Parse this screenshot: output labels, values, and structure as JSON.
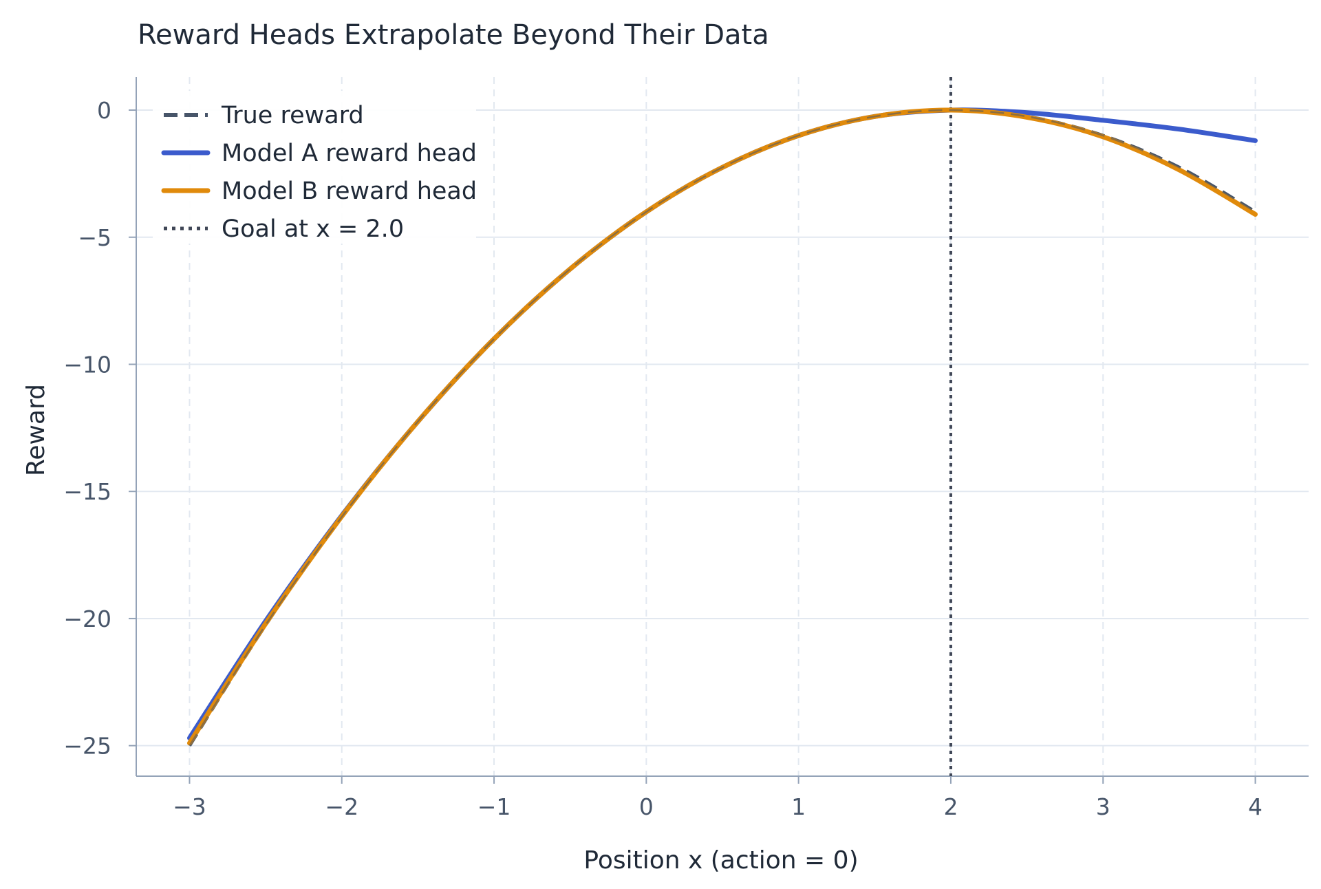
{
  "chart_data": {
    "type": "line",
    "title": "Reward Heads Extrapolate Beyond Their Data",
    "xlabel": "Position x (action = 0)",
    "ylabel": "Reward",
    "xlim": [
      -3.35,
      4.35
    ],
    "ylim": [
      -26.2,
      1.3
    ],
    "xticks": [
      -3,
      -2,
      -1,
      0,
      1,
      2,
      3,
      4
    ],
    "yticks": [
      0,
      -5,
      -10,
      -15,
      -20,
      -25
    ],
    "xtick_labels": [
      "−3",
      "−2",
      "−1",
      "0",
      "1",
      "2",
      "3",
      "4"
    ],
    "ytick_labels": [
      "0",
      "−5",
      "−10",
      "−15",
      "−20",
      "−25"
    ],
    "grid": true,
    "legend_position": "top-left",
    "series": [
      {
        "name": "True reward",
        "style": "dashed",
        "color": "#475569",
        "x": [
          -3,
          -2.5,
          -2,
          -1.5,
          -1,
          -0.5,
          0,
          0.5,
          1,
          1.5,
          2,
          2.5,
          3,
          3.5,
          4
        ],
        "y": [
          -25,
          -20.25,
          -16,
          -12.25,
          -9,
          -6.25,
          -4,
          -2.25,
          -1,
          -0.25,
          0,
          -0.25,
          -1,
          -2.25,
          -4
        ]
      },
      {
        "name": "Model A reward head",
        "style": "solid",
        "color": "#3b5bcc",
        "x": [
          -3,
          -2.5,
          -2,
          -1.5,
          -1,
          -0.5,
          0,
          0.5,
          1,
          1.5,
          2,
          2.5,
          3,
          3.5,
          4
        ],
        "y": [
          -24.7,
          -20.1,
          -15.95,
          -12.25,
          -9,
          -6.25,
          -4,
          -2.25,
          -1,
          -0.25,
          0,
          -0.1,
          -0.4,
          -0.75,
          -1.2
        ]
      },
      {
        "name": "Model B reward head",
        "style": "solid",
        "color": "#e08a0b",
        "x": [
          -3,
          -2.5,
          -2,
          -1.5,
          -1,
          -0.5,
          0,
          0.5,
          1,
          1.5,
          2,
          2.5,
          3,
          3.5,
          4
        ],
        "y": [
          -24.9,
          -20.2,
          -15.98,
          -12.25,
          -9,
          -6.25,
          -4,
          -2.25,
          -1,
          -0.25,
          0,
          -0.28,
          -1.05,
          -2.35,
          -4.1
        ]
      }
    ],
    "reference_line": {
      "name": "Goal at x = 2.0",
      "x": 2.0,
      "style": "dotted",
      "color": "#3f4656"
    }
  }
}
